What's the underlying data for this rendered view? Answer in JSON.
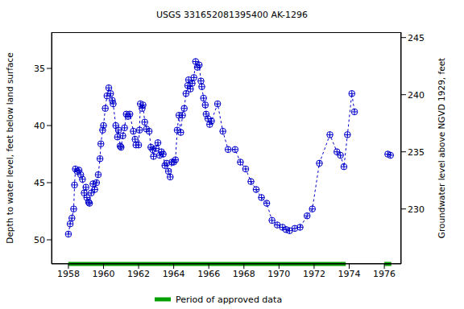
{
  "chart_data": {
    "type": "line",
    "title": "USGS 331652081395400 AK-1296",
    "x_label": "",
    "y_label": "Depth to water level, feet below land surface",
    "y2_label": "Groundwater level above NGVD 1929, feet",
    "x": [
      1958.0,
      1958.1,
      1958.2,
      1958.3,
      1958.35,
      1958.4,
      1958.5,
      1958.6,
      1958.7,
      1958.8,
      1958.9,
      1959.0,
      1959.05,
      1959.15,
      1959.2,
      1959.3,
      1959.4,
      1959.5,
      1959.6,
      1959.7,
      1959.8,
      1959.85,
      1959.95,
      1960.0,
      1960.1,
      1960.2,
      1960.3,
      1960.4,
      1960.5,
      1960.55,
      1960.7,
      1960.8,
      1960.85,
      1960.95,
      1961.0,
      1961.1,
      1961.2,
      1961.3,
      1961.4,
      1961.5,
      1961.7,
      1961.8,
      1961.85,
      1962.0,
      1962.05,
      1962.1,
      1962.2,
      1962.25,
      1962.35,
      1962.45,
      1962.6,
      1962.7,
      1962.8,
      1962.85,
      1963.0,
      1963.1,
      1963.2,
      1963.3,
      1963.4,
      1963.5,
      1963.6,
      1963.7,
      1963.8,
      1963.9,
      1964.0,
      1964.1,
      1964.2,
      1964.3,
      1964.4,
      1964.5,
      1964.6,
      1964.7,
      1964.8,
      1964.85,
      1964.95,
      1965.05,
      1965.15,
      1965.25,
      1965.35,
      1965.45,
      1965.55,
      1965.6,
      1965.7,
      1965.8,
      1965.85,
      1965.95,
      1966.05,
      1966.15,
      1966.5,
      1966.8,
      1967.1,
      1967.5,
      1967.8,
      1968.1,
      1968.4,
      1968.7,
      1969.0,
      1969.3,
      1969.6,
      1969.9,
      1970.2,
      1970.4,
      1970.6,
      1970.9,
      1971.2,
      1971.6,
      1971.9,
      1972.3,
      1972.9,
      1973.3,
      1973.5,
      1973.7,
      1973.9,
      1974.15,
      1974.3,
      1975.2,
      1976.2,
      1976.35
    ],
    "values": [
      49.5,
      48.6,
      48.1,
      47.3,
      45.2,
      43.8,
      44.0,
      43.9,
      44.3,
      44.7,
      45.9,
      45.4,
      46.3,
      46.7,
      46.8,
      45.9,
      45.1,
      45.6,
      45.0,
      44.3,
      42.9,
      41.6,
      40.4,
      40.0,
      38.5,
      37.4,
      36.7,
      37.2,
      37.8,
      38.1,
      40.0,
      41.0,
      40.4,
      41.8,
      41.9,
      40.9,
      40.2,
      39.0,
      39.2,
      39.0,
      40.5,
      41.2,
      41.7,
      41.7,
      40.4,
      38.1,
      38.5,
      38.2,
      39.7,
      40.3,
      40.5,
      41.9,
      42.1,
      42.7,
      42.0,
      41.5,
      42.6,
      42.3,
      42.5,
      43.5,
      43.3,
      44.0,
      44.5,
      43.2,
      43.2,
      43.0,
      40.4,
      39.1,
      40.6,
      39.1,
      38.5,
      37.2,
      36.5,
      36.0,
      36.8,
      36.3,
      35.8,
      34.4,
      34.9,
      34.7,
      36.1,
      36.6,
      37.6,
      38.2,
      39.0,
      39.4,
      39.9,
      39.6,
      38.1,
      40.5,
      42.1,
      42.1,
      43.2,
      43.8,
      44.9,
      45.6,
      46.3,
      46.8,
      48.3,
      48.7,
      48.9,
      49.1,
      49.2,
      49.0,
      48.9,
      47.9,
      47.3,
      43.3,
      40.8,
      42.3,
      42.6,
      43.6,
      40.8,
      37.2,
      38.8,
      null,
      42.5,
      42.6
    ],
    "color": "#0000cc",
    "marker": "circle-plus",
    "line_style": "dashed",
    "xlim": [
      1957.04,
      1976.96
    ],
    "xticks": [
      1958,
      1960,
      1962,
      1964,
      1966,
      1968,
      1970,
      1972,
      1974,
      1976
    ],
    "ylim": [
      31.83,
      52.11
    ],
    "yticks": [
      35,
      40,
      45,
      50
    ],
    "y2lim": [
      245.47,
      225.19
    ],
    "y2ticks": [
      230,
      235,
      240,
      245
    ],
    "approved_periods": {
      "name": "Period of approved data",
      "color": "#00a000",
      "ranges": [
        [
          1958,
          1973.8
        ],
        [
          1976,
          1976.4
        ]
      ]
    }
  }
}
